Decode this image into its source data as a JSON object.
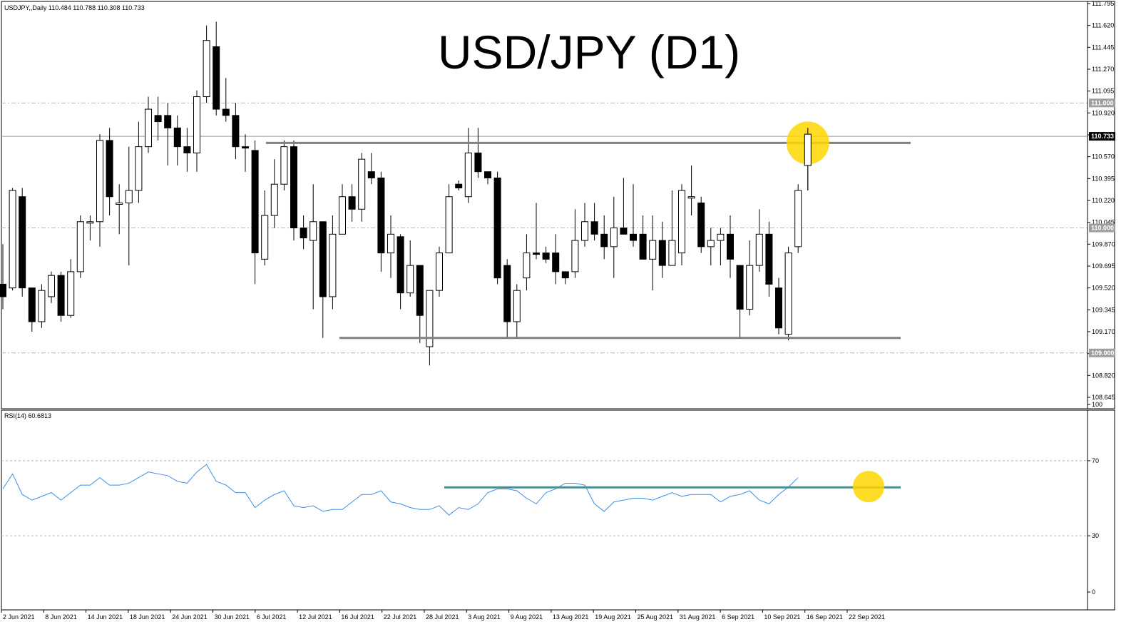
{
  "header": {
    "symbol_label": "USDJPY,,Daily 110.484 110.788 110.308 110.733",
    "title": "USD/JPY (D1)"
  },
  "rsi_header": {
    "label": "RSI(14) 60.6813"
  },
  "chart_data": [
    {
      "type": "candlestick",
      "title": "USD/JPY (D1)",
      "ylim": [
        108.645,
        111.795
      ],
      "y_ticks": [
        "111.795",
        "111.620",
        "111.445",
        "111.270",
        "111.095",
        "110.920",
        "110.745",
        "110.570",
        "110.395",
        "110.220",
        "110.045",
        "109.870",
        "109.695",
        "109.520",
        "109.345",
        "109.170",
        "108.995",
        "108.820",
        "108.645"
      ],
      "price_badges": [
        {
          "label": "111.000",
          "value": 111.0,
          "color": "#9e9e9e"
        },
        {
          "label": "110.733",
          "value": 110.733,
          "color": "#000000"
        },
        {
          "label": "110.000",
          "value": 110.0,
          "color": "#9e9e9e"
        },
        {
          "label": "109.000",
          "value": 109.0,
          "color": "#9e9e9e"
        }
      ],
      "level_lines": [
        111.0,
        110.0,
        109.0
      ],
      "bid_line": 110.733,
      "resistance": 110.68,
      "support": 109.12,
      "x_labels": [
        "2 Jun 2021",
        "8 Jun 2021",
        "14 Jun 2021",
        "18 Jun 2021",
        "24 Jun 2021",
        "30 Jun 2021",
        "6 Jul 2021",
        "12 Jul 2021",
        "16 Jul 2021",
        "22 Jul 2021",
        "28 Jul 2021",
        "3 Aug 2021",
        "9 Aug 2021",
        "13 Aug 2021",
        "19 Aug 2021",
        "25 Aug 2021",
        "31 Aug 2021",
        "6 Sep 2021",
        "10 Sep 2021",
        "16 Sep 2021",
        "22 Sep 2021"
      ],
      "candles": [
        [
          109.55,
          109.45,
          109.87,
          109.35
        ],
        [
          109.52,
          110.3,
          110.32,
          109.5
        ],
        [
          110.25,
          109.52,
          110.32,
          109.45
        ],
        [
          109.52,
          109.25,
          109.52,
          109.17
        ],
        [
          109.25,
          109.5,
          109.55,
          109.2
        ],
        [
          109.45,
          109.62,
          109.65,
          109.4
        ],
        [
          109.62,
          109.3,
          109.65,
          109.25
        ],
        [
          109.3,
          109.65,
          109.75,
          109.28
        ],
        [
          109.65,
          110.05,
          110.1,
          109.6
        ],
        [
          110.05,
          110.05,
          110.1,
          109.9
        ],
        [
          110.05,
          110.7,
          110.75,
          109.85
        ],
        [
          110.7,
          110.25,
          110.8,
          110.1
        ],
        [
          110.2,
          110.2,
          110.35,
          109.95
        ],
        [
          110.2,
          110.3,
          110.65,
          109.7
        ],
        [
          110.3,
          110.65,
          110.85,
          110.2
        ],
        [
          110.65,
          110.95,
          111.05,
          110.6
        ],
        [
          110.9,
          110.85,
          111.05,
          110.7
        ],
        [
          110.9,
          110.8,
          111.0,
          110.5
        ],
        [
          110.8,
          110.65,
          110.9,
          110.5
        ],
        [
          110.65,
          110.6,
          110.8,
          110.45
        ],
        [
          110.6,
          111.05,
          111.1,
          110.45
        ],
        [
          111.05,
          111.5,
          111.62,
          111.0
        ],
        [
          111.45,
          110.95,
          111.65,
          110.9
        ],
        [
          110.95,
          110.9,
          111.2,
          110.85
        ],
        [
          110.9,
          110.65,
          111.0,
          110.55
        ],
        [
          110.65,
          110.64,
          110.75,
          110.45
        ],
        [
          110.62,
          109.8,
          110.7,
          109.55
        ],
        [
          109.75,
          110.1,
          110.3,
          109.7
        ],
        [
          110.1,
          110.35,
          110.55,
          110.0
        ],
        [
          110.35,
          110.65,
          110.7,
          110.3
        ],
        [
          110.65,
          110.0,
          110.7,
          109.9
        ],
        [
          110.0,
          109.92,
          110.1,
          109.83
        ],
        [
          109.9,
          110.05,
          110.35,
          109.35
        ],
        [
          110.05,
          109.45,
          110.05,
          109.12
        ],
        [
          109.45,
          109.95,
          110.1,
          109.35
        ],
        [
          109.95,
          110.25,
          110.35,
          109.95
        ],
        [
          110.25,
          110.15,
          110.35,
          110.05
        ],
        [
          110.15,
          110.55,
          110.6,
          110.05
        ],
        [
          110.45,
          110.4,
          110.6,
          110.35
        ],
        [
          110.4,
          109.8,
          110.45,
          109.65
        ],
        [
          109.8,
          109.95,
          110.1,
          109.6
        ],
        [
          109.93,
          109.48,
          109.95,
          109.35
        ],
        [
          109.48,
          109.7,
          109.9,
          109.45
        ],
        [
          109.7,
          109.3,
          109.7,
          109.08
        ],
        [
          109.05,
          109.5,
          109.5,
          108.9
        ],
        [
          109.5,
          109.8,
          109.85,
          109.45
        ],
        [
          109.8,
          110.25,
          110.35,
          109.8
        ],
        [
          110.35,
          110.32,
          110.38,
          110.3
        ],
        [
          110.25,
          110.6,
          110.8,
          110.2
        ],
        [
          110.6,
          110.45,
          110.8,
          110.4
        ],
        [
          110.45,
          110.4,
          110.45,
          110.35
        ],
        [
          110.4,
          109.6,
          110.45,
          109.55
        ],
        [
          109.7,
          109.25,
          109.75,
          109.12
        ],
        [
          109.25,
          109.5,
          109.55,
          109.12
        ],
        [
          109.6,
          109.8,
          109.95,
          109.5
        ],
        [
          109.8,
          109.79,
          110.2,
          109.75
        ],
        [
          109.8,
          109.75,
          109.85,
          109.72
        ],
        [
          109.8,
          109.65,
          109.95,
          109.55
        ],
        [
          109.65,
          109.6,
          109.65,
          109.55
        ],
        [
          109.65,
          109.9,
          110.15,
          109.6
        ],
        [
          109.9,
          110.05,
          110.2,
          109.85
        ],
        [
          110.05,
          109.95,
          110.2,
          109.9
        ],
        [
          109.95,
          109.85,
          110.1,
          109.75
        ],
        [
          109.85,
          110.0,
          110.25,
          109.6
        ],
        [
          110.0,
          109.95,
          110.4,
          109.95
        ],
        [
          109.95,
          109.9,
          110.35,
          109.85
        ],
        [
          109.95,
          109.75,
          110.1,
          109.75
        ],
        [
          109.75,
          109.9,
          110.1,
          109.5
        ],
        [
          109.9,
          109.7,
          110.05,
          109.6
        ],
        [
          109.7,
          109.9,
          110.3,
          109.7
        ],
        [
          109.8,
          110.3,
          110.35,
          109.7
        ],
        [
          110.25,
          110.25,
          110.5,
          110.1
        ],
        [
          110.2,
          109.85,
          110.25,
          109.8
        ],
        [
          109.85,
          109.9,
          110.0,
          109.7
        ],
        [
          109.9,
          109.95,
          110.0,
          109.7
        ],
        [
          109.95,
          109.75,
          110.1,
          109.6
        ],
        [
          109.7,
          109.35,
          109.7,
          109.12
        ],
        [
          109.35,
          109.7,
          109.9,
          109.3
        ],
        [
          109.7,
          109.95,
          110.15,
          109.65
        ],
        [
          109.95,
          109.55,
          110.05,
          109.45
        ],
        [
          109.52,
          109.2,
          109.6,
          109.15
        ],
        [
          109.15,
          109.8,
          109.85,
          109.1
        ],
        [
          109.85,
          110.3,
          110.35,
          109.8
        ],
        [
          110.5,
          110.75,
          110.8,
          110.3
        ]
      ]
    },
    {
      "type": "line",
      "title": "RSI(14) 60.6813",
      "ylim": [
        0,
        100
      ],
      "y_ticks": [
        "100",
        "70",
        "30",
        "0"
      ],
      "levels": [
        70,
        30
      ],
      "resistance": 55.8,
      "series": [
        {
          "values": [
            55,
            63,
            52,
            49,
            51,
            53,
            49,
            53,
            57,
            57,
            61,
            57,
            57,
            58,
            61,
            64,
            63,
            62,
            59,
            58,
            64,
            68,
            59,
            57,
            53,
            53,
            45,
            49,
            52,
            54,
            46,
            45,
            46,
            43,
            44,
            44,
            48,
            52,
            52,
            54,
            48,
            47,
            45,
            44,
            44,
            46,
            41,
            45,
            44,
            47,
            53,
            55,
            55,
            54,
            50,
            47,
            53,
            55,
            58,
            58,
            57,
            47,
            43,
            48,
            49,
            50,
            50,
            49,
            51,
            53,
            51,
            52,
            52,
            52,
            48,
            51,
            52,
            54,
            49,
            47,
            52,
            56,
            61
          ]
        }
      ]
    }
  ]
}
